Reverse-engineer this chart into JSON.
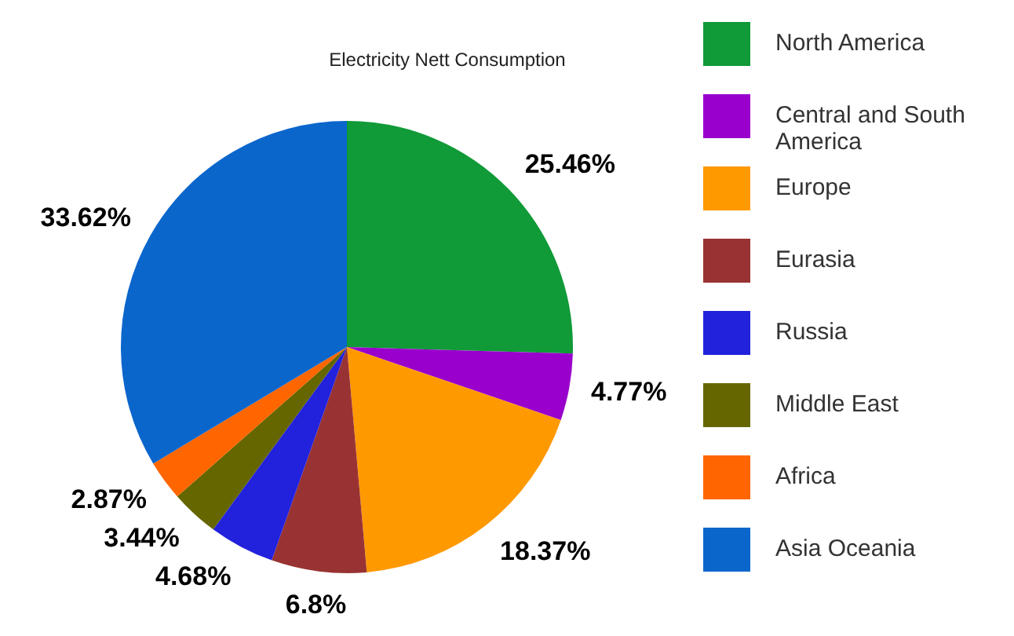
{
  "chart_data": {
    "type": "pie",
    "title": "Electricity Nett Consumption",
    "categories": [
      "North America",
      "Central and South America",
      "Europe",
      "Eurasia",
      "Russia",
      "Middle East",
      "Africa",
      "Asia Oceania"
    ],
    "values": [
      25.46,
      4.77,
      18.37,
      6.8,
      4.68,
      3.44,
      2.87,
      33.62
    ],
    "colors": [
      "#109a38",
      "#9900cc",
      "#ff9900",
      "#993333",
      "#2222dd",
      "#666600",
      "#ff6600",
      "#0b66cc"
    ],
    "value_labels": [
      "25.46%",
      "4.77%",
      "18.37%",
      "6.8%",
      "4.68%",
      "3.44%",
      "2.87%",
      "33.62%"
    ],
    "legend": "right"
  }
}
